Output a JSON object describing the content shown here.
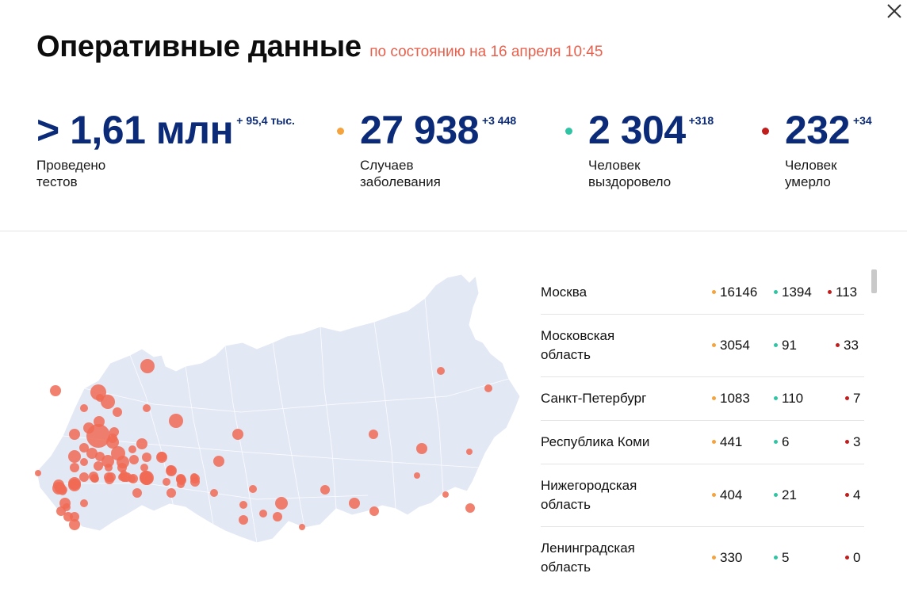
{
  "header": {
    "title": "Оперативные данные",
    "subtitle": "по состоянию на 16 апреля 10:45"
  },
  "colors": {
    "cases": "#f5a33c",
    "recovered": "#2fc4a4",
    "deaths": "#c21d1d",
    "accent_orange": "#e8604c",
    "number_blue": "#0b2a78",
    "map_fill": "#e3e8f5",
    "map_marker": "#f06a55"
  },
  "stats": [
    {
      "value": "> 1,61 млн",
      "delta": "+ 95,4 тыс.",
      "label": "Проведено\nтестов"
    },
    {
      "value": "27 938",
      "delta": "+3 448",
      "label": "Случаев\nзаболевания"
    },
    {
      "value": "2 304",
      "delta": "+318",
      "label": "Человек\nвыздоровело"
    },
    {
      "value": "232",
      "delta": "+34",
      "label": "Человек\nумерло"
    }
  ],
  "regions": [
    {
      "name": "Москва",
      "cases": "16146",
      "recovered": "1394",
      "deaths": "113"
    },
    {
      "name": "Московская\nобласть",
      "cases": "3054",
      "recovered": "91",
      "deaths": "33"
    },
    {
      "name": "Санкт-Петербург",
      "cases": "1083",
      "recovered": "110",
      "deaths": "7"
    },
    {
      "name": "Республика Коми",
      "cases": "441",
      "recovered": "6",
      "deaths": "3"
    },
    {
      "name": "Нижегородская\nобласть",
      "cases": "404",
      "recovered": "21",
      "deaths": "4"
    },
    {
      "name": "Ленинградская\nобласть",
      "cases": "330",
      "recovered": "5",
      "deaths": "0"
    }
  ],
  "icons": {
    "close": "close-icon"
  }
}
